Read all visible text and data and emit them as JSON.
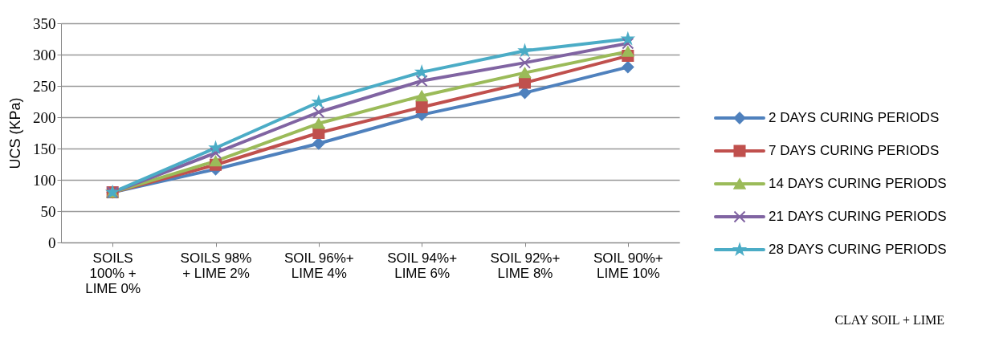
{
  "chart_data": {
    "type": "line",
    "ylabel": "UCS (KPa)",
    "categories": [
      "SOILS 100% + LIME 0%",
      "SOILS 98% + LIME 2%",
      "SOIL 96%+ LIME 4%",
      "SOIL 94%+ LIME 6%",
      "SOIL 92%+ LIME 8%",
      "SOIL 90%+ LIME 10%"
    ],
    "series": [
      {
        "name": "2 DAYS  CURING PERIODS",
        "color": "#4f81bd",
        "marker": "diamond",
        "values": [
          80,
          117,
          158,
          204,
          239,
          280
        ]
      },
      {
        "name": "7 DAYS  CURING PERIODS",
        "color": "#c0504d",
        "marker": "square",
        "values": [
          80,
          124,
          175,
          216,
          255,
          298
        ]
      },
      {
        "name": "14  DAYS  CURING PERIODS",
        "color": "#9bbb59",
        "marker": "triangle",
        "values": [
          80,
          130,
          190,
          234,
          271,
          305
        ]
      },
      {
        "name": "21 DAYS  CURING PERIODS",
        "color": "#8064a2",
        "marker": "cross",
        "values": [
          80,
          143,
          208,
          258,
          287,
          318
        ]
      },
      {
        "name": "28 DAYS  CURING PERIODS",
        "color": "#4bacc6",
        "marker": "star",
        "values": [
          80,
          151,
          224,
          272,
          306,
          325
        ]
      }
    ],
    "ylim": [
      0,
      350
    ],
    "yticks": [
      0,
      50,
      100,
      150,
      200,
      250,
      300,
      350
    ],
    "grid": "y",
    "legend": "right",
    "annotations": [
      "CLAY SOIL + LIME"
    ]
  }
}
